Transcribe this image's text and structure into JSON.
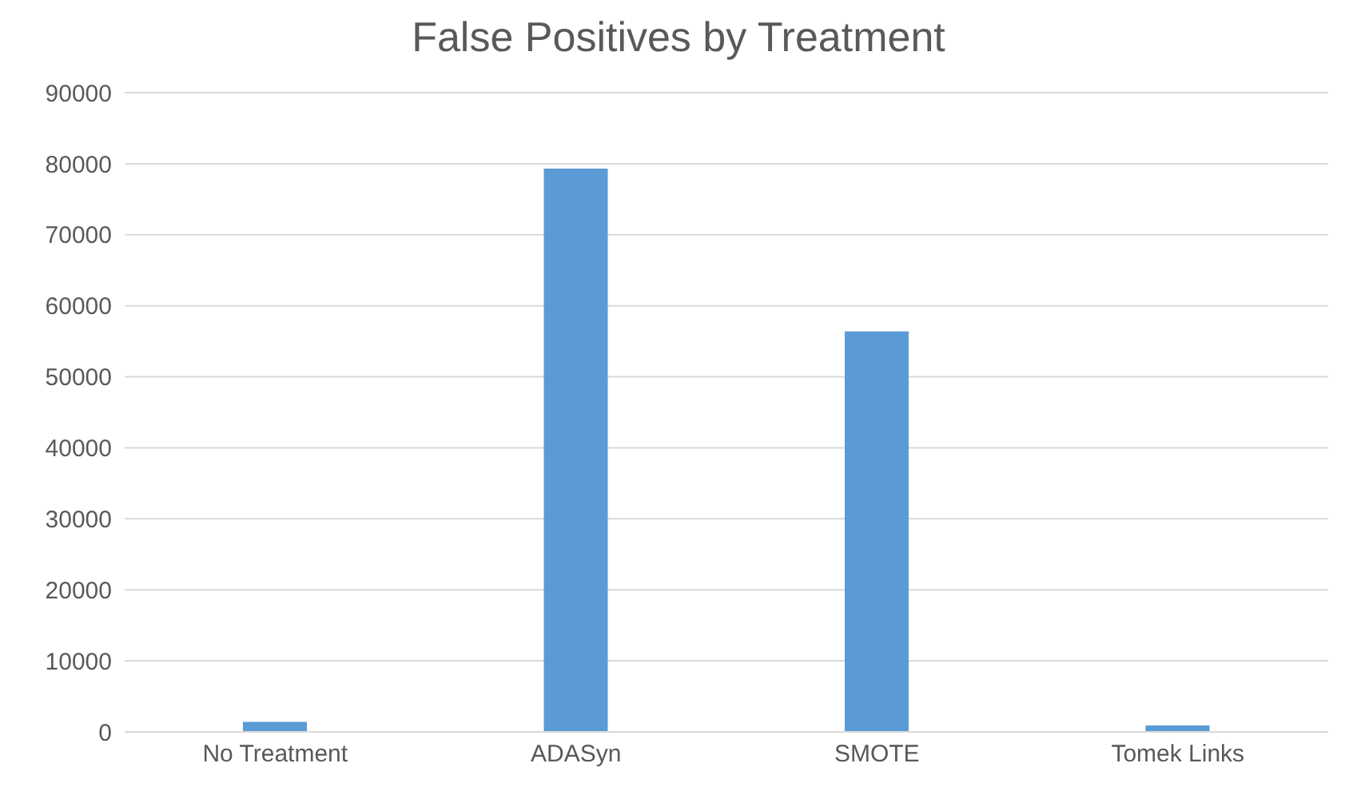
{
  "chart_data": {
    "type": "bar",
    "title": "False Positives by Treatment",
    "categories": [
      "No Treatment",
      "ADASyn",
      "SMOTE",
      "Tomek Links"
    ],
    "values": [
      1400,
      79300,
      56400,
      900
    ],
    "color": "#5b9bd5",
    "ylim": [
      0,
      90000
    ],
    "yticks": [
      0,
      10000,
      20000,
      30000,
      40000,
      50000,
      60000,
      70000,
      80000,
      90000
    ],
    "grid": "y"
  }
}
